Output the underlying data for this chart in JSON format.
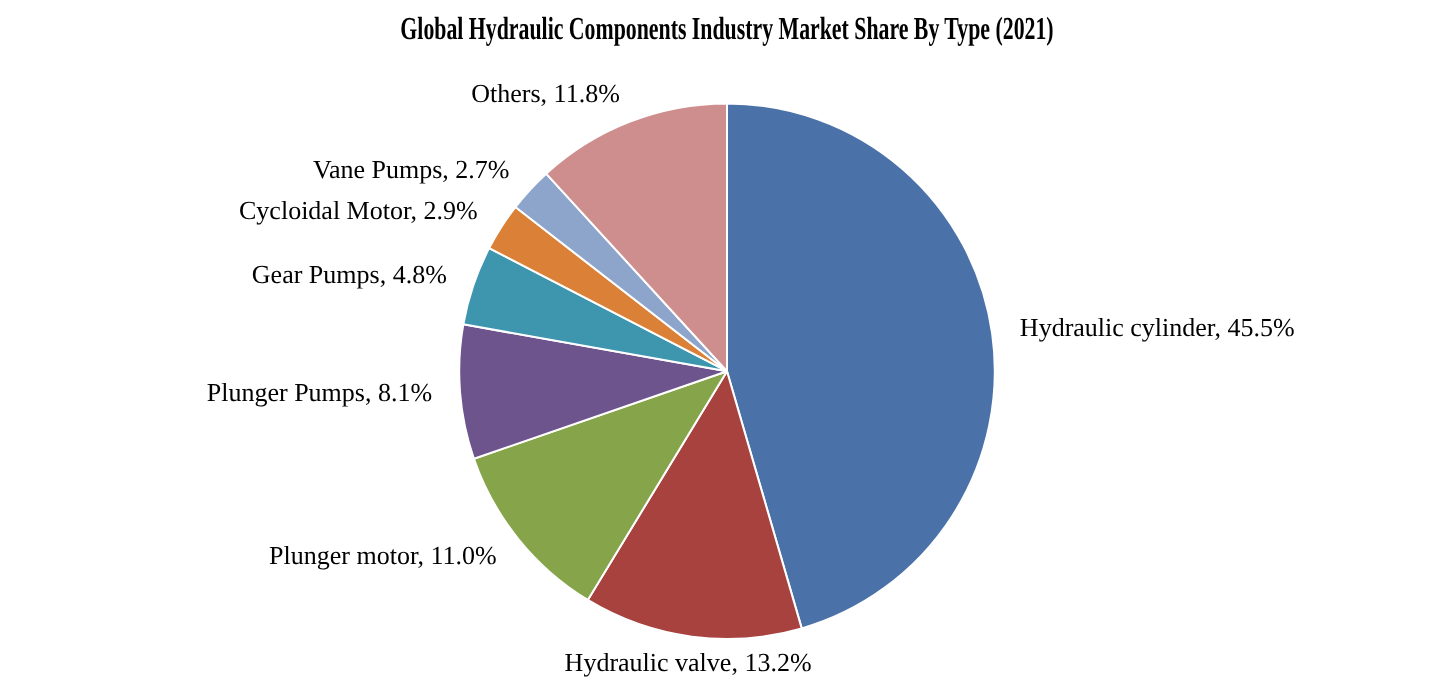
{
  "chart_data": {
    "type": "pie",
    "title": "Global Hydraulic Components Industry Market Share By Type (2021)",
    "categories": [
      "Hydraulic cylinder",
      "Hydraulic valve",
      "Plunger motor",
      "Plunger Pumps",
      "Gear Pumps",
      "Cycloidal Motor",
      "Vane Pumps",
      "Others"
    ],
    "values": [
      45.5,
      13.2,
      11.0,
      8.1,
      4.8,
      2.9,
      2.7,
      11.8
    ],
    "value_labels": [
      "45.5%",
      "13.2%",
      "11.0%",
      "8.1%",
      "4.8%",
      "2.9%",
      "2.7%",
      "11.8%"
    ],
    "colors": [
      "#4a72a8",
      "#a8423f",
      "#86a44a",
      "#6e548d",
      "#3d96ae",
      "#da8137",
      "#8ea5cb",
      "#ce8e8d"
    ]
  }
}
